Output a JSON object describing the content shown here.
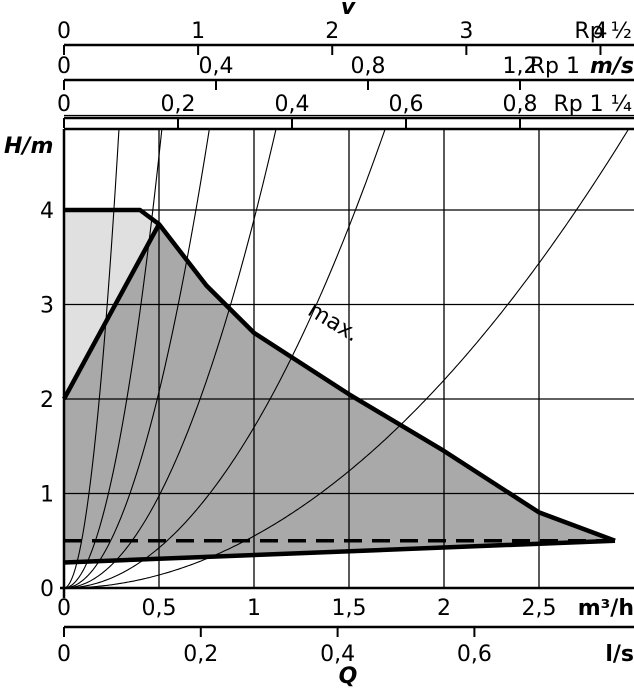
{
  "chart_data": {
    "type": "line",
    "title": "",
    "xlabel": "Q",
    "ylabel": "H/m",
    "x_unit_top": "m³/h",
    "x_unit_bottom": "l/s",
    "xlim": [
      0,
      3
    ],
    "ylim": [
      0,
      5
    ],
    "x_ticks": [
      "0",
      "0,5",
      "1",
      "1,5",
      "2",
      "2,5"
    ],
    "x_tick_values": [
      0,
      0.5,
      1,
      1.5,
      2,
      2.5
    ],
    "y_ticks": [
      "0",
      "1",
      "2",
      "3",
      "4"
    ],
    "y_tick_values": [
      0,
      1,
      2,
      3,
      4
    ],
    "bottom_axis": {
      "unit": "l/s",
      "ticks": [
        {
          "label": "0",
          "value": 0
        },
        {
          "label": "0,2",
          "value": 0.2
        },
        {
          "label": "0,4",
          "value": 0.4
        },
        {
          "label": "0,6",
          "value": 0.6
        }
      ]
    },
    "velocity_axes": {
      "title": "v",
      "unit": "m/s",
      "scales": [
        {
          "pipe": "Rp ½",
          "ticks": [
            {
              "label": "0",
              "value": 0
            },
            {
              "label": "1",
              "value": 1
            },
            {
              "label": "2",
              "value": 2
            },
            {
              "label": "3",
              "value": 3
            },
            {
              "label": "4",
              "value": 4
            }
          ],
          "max_value": 4.25
        },
        {
          "pipe": "Rp 1",
          "ticks": [
            {
              "label": "0",
              "value": 0
            },
            {
              "label": "0,4",
              "value": 0.4
            },
            {
              "label": "0,8",
              "value": 0.8
            },
            {
              "label": "1,2",
              "value": 1.2
            }
          ],
          "max_value": 1.5
        },
        {
          "pipe": "Rp 1 ¼",
          "ticks": [
            {
              "label": "0",
              "value": 0
            },
            {
              "label": "0,2",
              "value": 0.2
            },
            {
              "label": "0,4",
              "value": 0.4
            },
            {
              "label": "0,6",
              "value": 0.6
            },
            {
              "label": "0,8",
              "value": 0.8
            }
          ],
          "max_value": 1.0
        }
      ]
    },
    "series": [
      {
        "name": "max.",
        "x": [
          0,
          0.4,
          0.5,
          0.75,
          1.0,
          1.5,
          2.0,
          2.5,
          2.9
        ],
        "y": [
          4.0,
          4.0,
          3.85,
          3.2,
          2.7,
          2.05,
          1.45,
          0.8,
          0.5
        ]
      },
      {
        "x": [
          0,
          0.5
        ],
        "y": [
          2.0,
          3.85
        ]
      },
      {
        "x": [
          0,
          2.9
        ],
        "y": [
          0.27,
          0.5
        ]
      },
      {
        "x": [
          0,
          2.9
        ],
        "y": [
          0.5,
          0.5
        ]
      }
    ],
    "system_curve_coefficients": [
      0.55,
      1.7,
      3.9,
      8.3,
      18.3,
      58
    ],
    "annotations": [
      {
        "text": "max.",
        "x": 1.4,
        "y": 2.75
      }
    ],
    "colors": {
      "max_region": "#a9a9a9",
      "light_region": "#e0e0e0",
      "lines": "#000000"
    },
    "grid": true
  }
}
